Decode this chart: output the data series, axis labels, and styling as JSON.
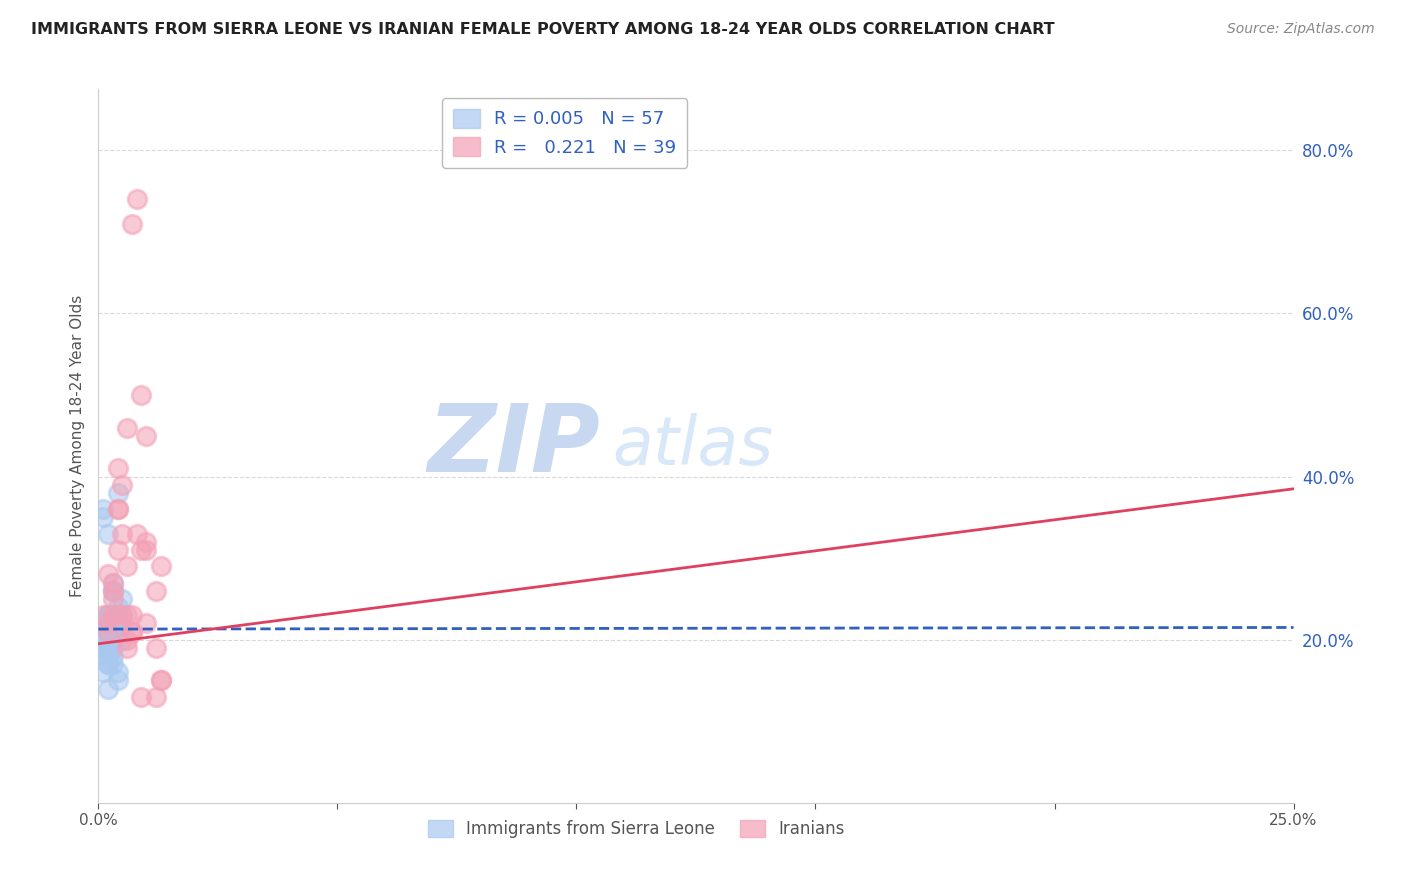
{
  "title": "IMMIGRANTS FROM SIERRA LEONE VS IRANIAN FEMALE POVERTY AMONG 18-24 YEAR OLDS CORRELATION CHART",
  "source": "Source: ZipAtlas.com",
  "ylabel": "Female Poverty Among 18-24 Year Olds",
  "right_yticks": [
    0.2,
    0.4,
    0.6,
    0.8
  ],
  "legend_entries": [
    {
      "label": "Immigrants from Sierra Leone",
      "color": "#a8c8f0",
      "R": "0.005",
      "N": "57"
    },
    {
      "label": "Iranians",
      "color": "#f4a0b5",
      "R": "0.221",
      "N": "39"
    }
  ],
  "watermark_zip": "ZIP",
  "watermark_atlas": "atlas",
  "blue_scatter_x": [
    0.001,
    0.002,
    0.001,
    0.002,
    0.003,
    0.001,
    0.001,
    0.002,
    0.002,
    0.003,
    0.003,
    0.002,
    0.004,
    0.003,
    0.002,
    0.002,
    0.004,
    0.003,
    0.003,
    0.002,
    0.001,
    0.005,
    0.004,
    0.002,
    0.002,
    0.003,
    0.005,
    0.004,
    0.003,
    0.003,
    0.002,
    0.001,
    0.001,
    0.003,
    0.004,
    0.002,
    0.003,
    0.001,
    0.004,
    0.003,
    0.002,
    0.004,
    0.005,
    0.003,
    0.003,
    0.005,
    0.002,
    0.001,
    0.002,
    0.004,
    0.004,
    0.003,
    0.002,
    0.003,
    0.001,
    0.004,
    0.001
  ],
  "blue_scatter_y": [
    0.35,
    0.33,
    0.36,
    0.23,
    0.21,
    0.19,
    0.21,
    0.22,
    0.2,
    0.26,
    0.22,
    0.23,
    0.38,
    0.22,
    0.21,
    0.23,
    0.21,
    0.21,
    0.19,
    0.2,
    0.21,
    0.2,
    0.22,
    0.18,
    0.17,
    0.23,
    0.25,
    0.21,
    0.23,
    0.22,
    0.2,
    0.19,
    0.22,
    0.26,
    0.22,
    0.2,
    0.27,
    0.21,
    0.23,
    0.2,
    0.19,
    0.21,
    0.23,
    0.2,
    0.18,
    0.22,
    0.17,
    0.16,
    0.21,
    0.15,
    0.16,
    0.17,
    0.14,
    0.22,
    0.2,
    0.24,
    0.21
  ],
  "pink_scatter_x": [
    0.001,
    0.002,
    0.003,
    0.002,
    0.003,
    0.002,
    0.003,
    0.003,
    0.004,
    0.004,
    0.005,
    0.004,
    0.005,
    0.006,
    0.006,
    0.006,
    0.007,
    0.006,
    0.006,
    0.005,
    0.004,
    0.008,
    0.007,
    0.01,
    0.009,
    0.012,
    0.01,
    0.013,
    0.007,
    0.008,
    0.01,
    0.012,
    0.009,
    0.013,
    0.01,
    0.009,
    0.007,
    0.012,
    0.013
  ],
  "pink_scatter_y": [
    0.23,
    0.22,
    0.26,
    0.28,
    0.23,
    0.21,
    0.25,
    0.27,
    0.31,
    0.36,
    0.39,
    0.36,
    0.33,
    0.29,
    0.23,
    0.19,
    0.21,
    0.2,
    0.46,
    0.23,
    0.41,
    0.74,
    0.23,
    0.45,
    0.5,
    0.26,
    0.31,
    0.29,
    0.71,
    0.33,
    0.22,
    0.13,
    0.13,
    0.15,
    0.32,
    0.31,
    0.21,
    0.19,
    0.15
  ],
  "blue_line_x": [
    0.0,
    0.25
  ],
  "blue_line_y": [
    0.213,
    0.215
  ],
  "pink_line_x": [
    0.0,
    0.25
  ],
  "pink_line_y": [
    0.195,
    0.385
  ],
  "xmin": 0.0,
  "xmax": 0.25,
  "ymin": 0.0,
  "ymax": 0.875,
  "grid_color": "#d0d0d0",
  "blue_color": "#a8c8f0",
  "pink_color": "#f4a0b5",
  "blue_line_color": "#3060c0",
  "pink_line_color": "#e04060",
  "title_color": "#222222",
  "right_tick_color": "#3060c0",
  "watermark_color_zip": "#c8d8f0",
  "watermark_color_atlas": "#d8e8f8"
}
